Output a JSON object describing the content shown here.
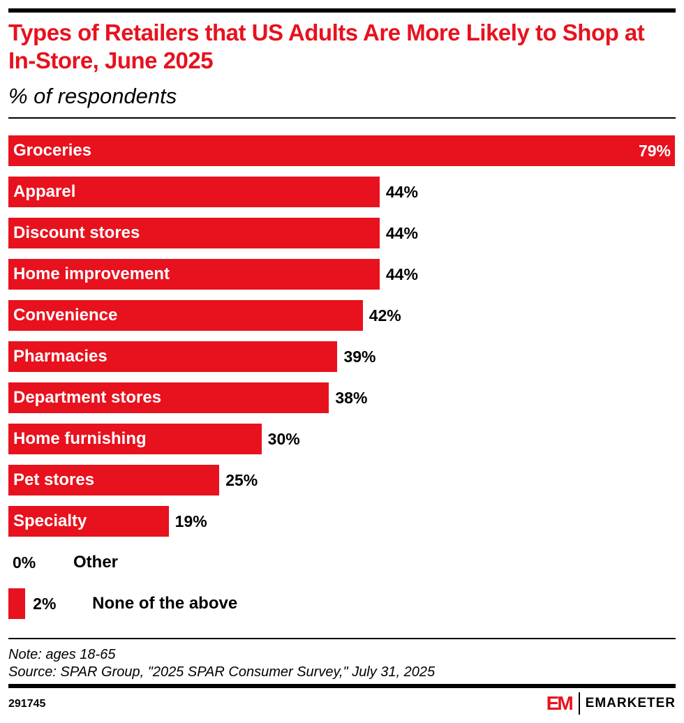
{
  "header": {
    "title": "Types of Retailers that US Adults Are More Likely to Shop at In-Store, June 2025",
    "subtitle": "% of respondents"
  },
  "chart_data": {
    "type": "bar",
    "orientation": "horizontal",
    "title": "Types of Retailers that US Adults Are More Likely to Shop at In-Store, June 2025",
    "subtitle": "% of respondents",
    "xlabel": "",
    "ylabel": "",
    "unit": "%",
    "xlim": [
      0,
      79
    ],
    "grid": false,
    "legend": "none",
    "color": "#e8111e",
    "categories": [
      "Groceries",
      "Apparel",
      "Discount stores",
      "Home improvement",
      "Convenience",
      "Pharmacies",
      "Department stores",
      "Home furnishing",
      "Pet stores",
      "Specialty",
      "Other",
      "None of the above"
    ],
    "values": [
      79,
      44,
      44,
      44,
      42,
      39,
      38,
      30,
      25,
      19,
      0,
      2
    ],
    "value_labels": [
      "79%",
      "44%",
      "44%",
      "44%",
      "42%",
      "39%",
      "38%",
      "30%",
      "25%",
      "19%",
      "0%",
      "2%"
    ]
  },
  "footer": {
    "note": "Note: ages 18-65",
    "source": "Source: SPAR Group, \"2025 SPAR Consumer Survey,\" July 31, 2025",
    "chart_id": "291745",
    "logo_mark": "EM",
    "logo_text": "EMARKETER"
  }
}
